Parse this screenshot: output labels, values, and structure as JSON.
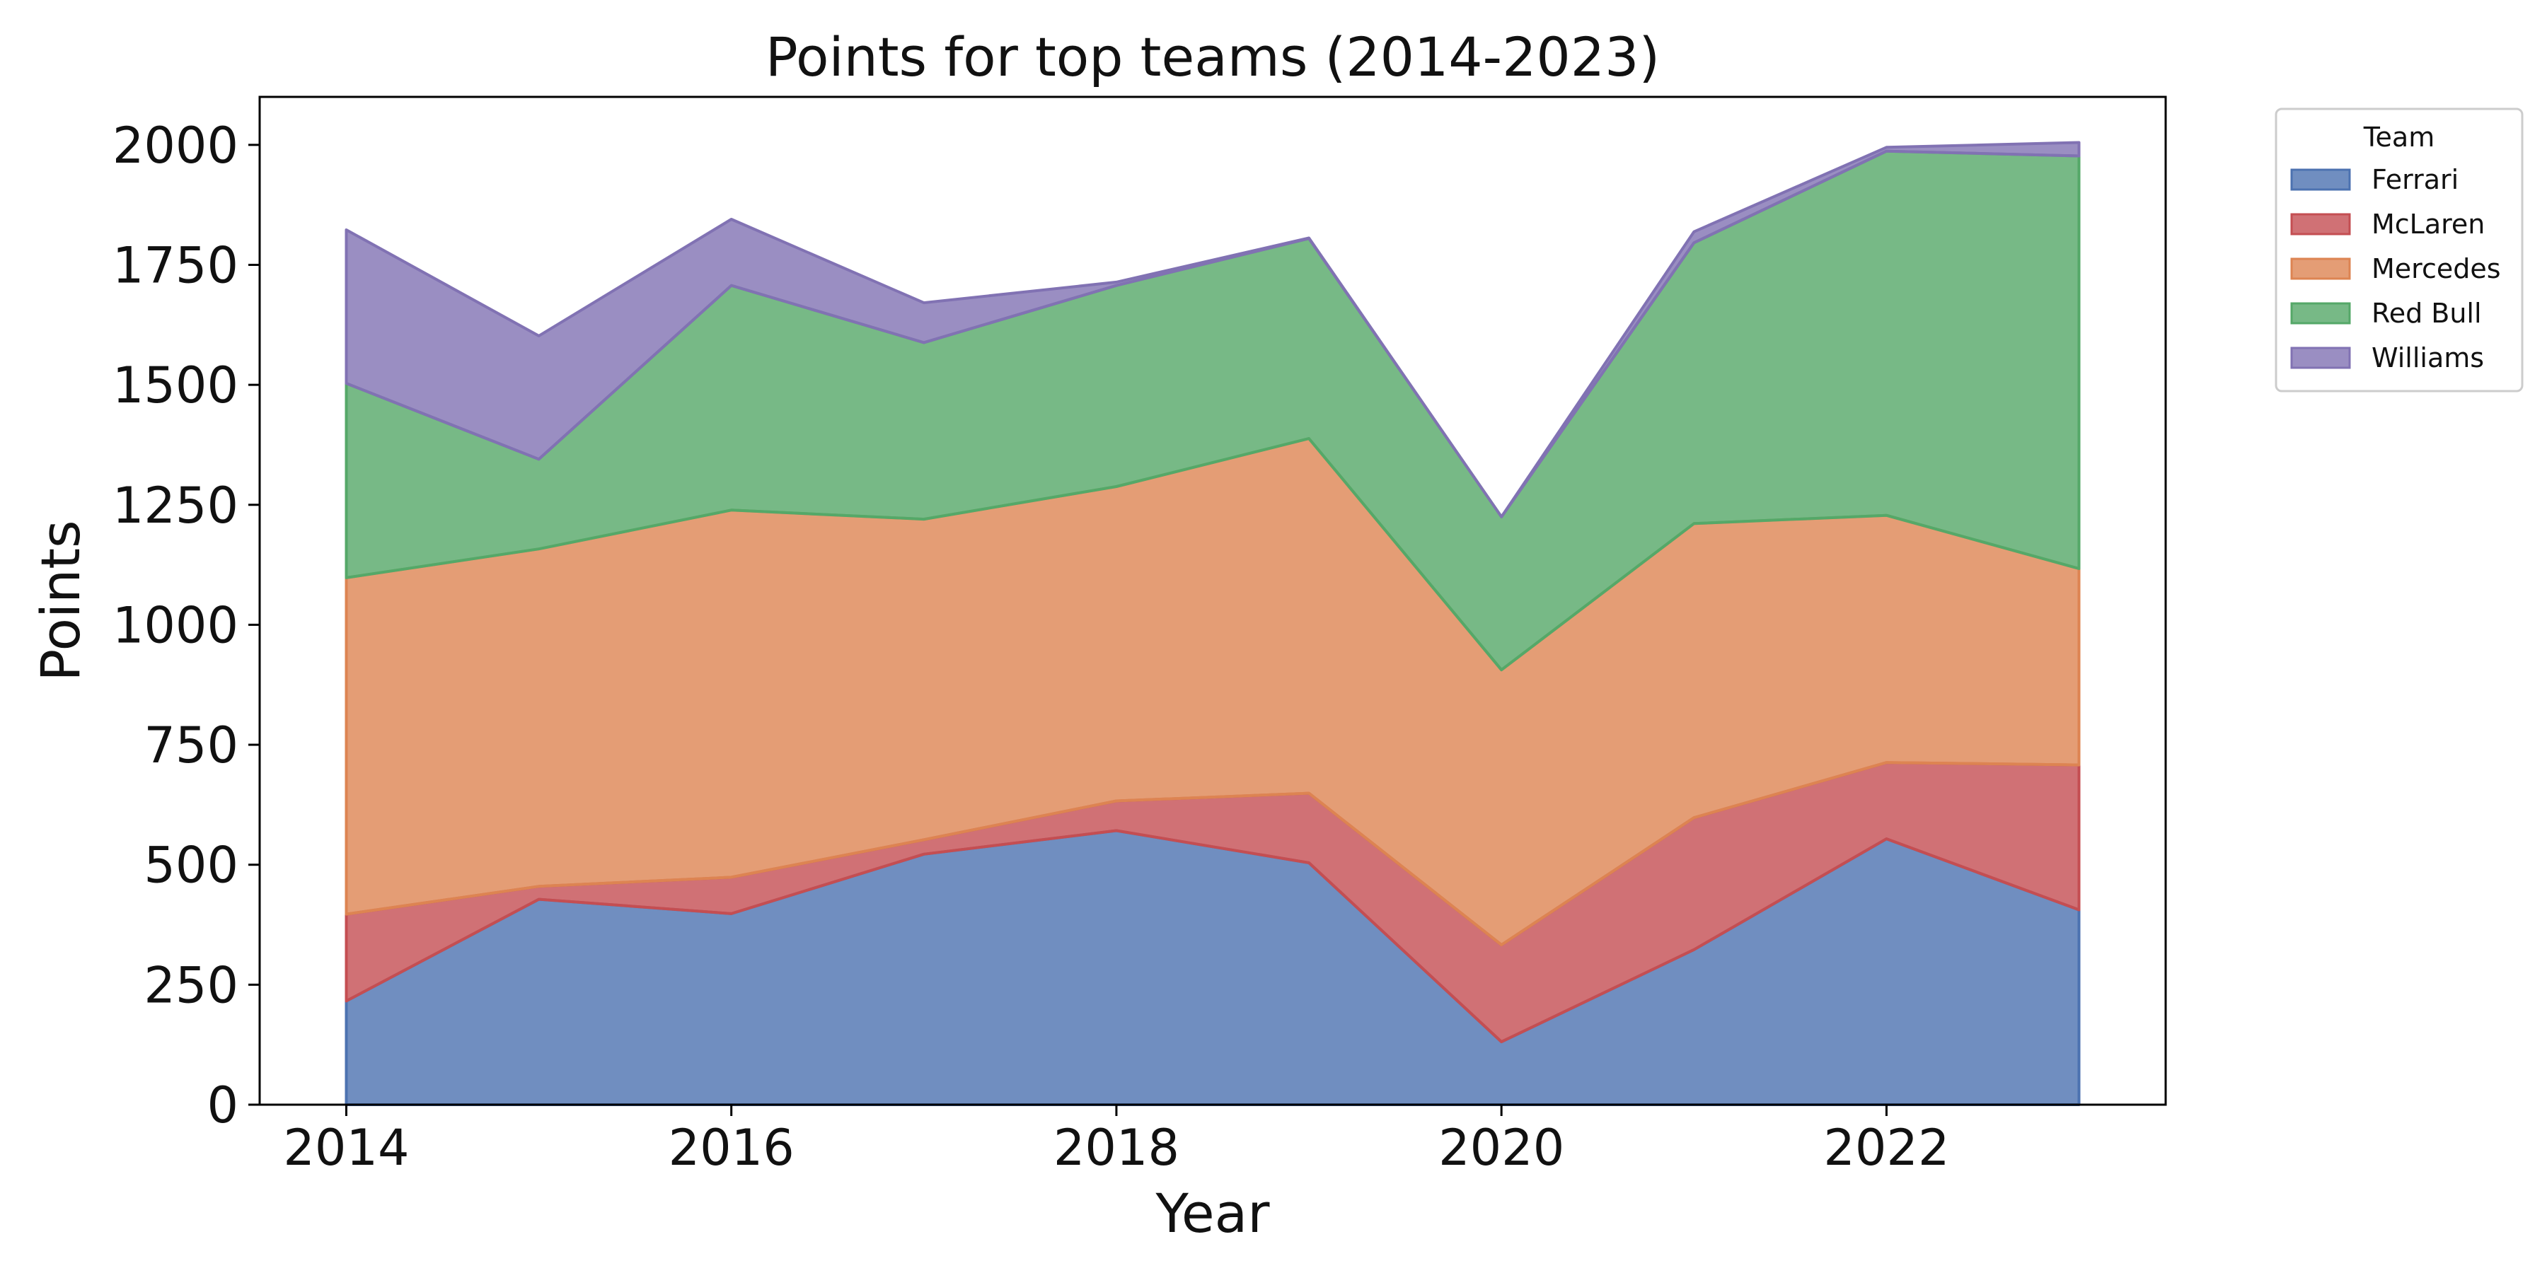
{
  "chart_data": {
    "type": "area",
    "stacked": true,
    "title": "Points for top teams (2014-2023)",
    "xlabel": "Year",
    "ylabel": "Points",
    "xlim": [
      2013.55,
      2023.45
    ],
    "ylim": [
      0,
      2100
    ],
    "x": [
      2014,
      2015,
      2016,
      2017,
      2018,
      2019,
      2020,
      2021,
      2022,
      2023
    ],
    "x_ticks": [
      2014,
      2016,
      2018,
      2020,
      2022
    ],
    "y_ticks": [
      0,
      250,
      500,
      750,
      1000,
      1250,
      1500,
      1750,
      2000
    ],
    "grid": false,
    "legend": {
      "title": "Team",
      "placement": "outside-upper-right"
    },
    "series": [
      {
        "name": "Ferrari",
        "color": "#4c72b0",
        "values": [
          216,
          428,
          398,
          522,
          571,
          504,
          131,
          323,
          554,
          406
        ]
      },
      {
        "name": "McLaren",
        "color": "#c44e52",
        "values": [
          181,
          27,
          76,
          30,
          62,
          145,
          202,
          275,
          159,
          302
        ]
      },
      {
        "name": "Mercedes",
        "color": "#dd8452",
        "values": [
          701,
          703,
          765,
          668,
          655,
          739,
          573,
          613,
          515,
          409
        ]
      },
      {
        "name": "Red Bull",
        "color": "#55a868",
        "values": [
          405,
          187,
          468,
          368,
          419,
          417,
          319,
          585,
          759,
          860
        ]
      },
      {
        "name": "Williams",
        "color": "#8172b3",
        "values": [
          320,
          257,
          138,
          83,
          7,
          1,
          0,
          23,
          8,
          28
        ]
      }
    ]
  }
}
